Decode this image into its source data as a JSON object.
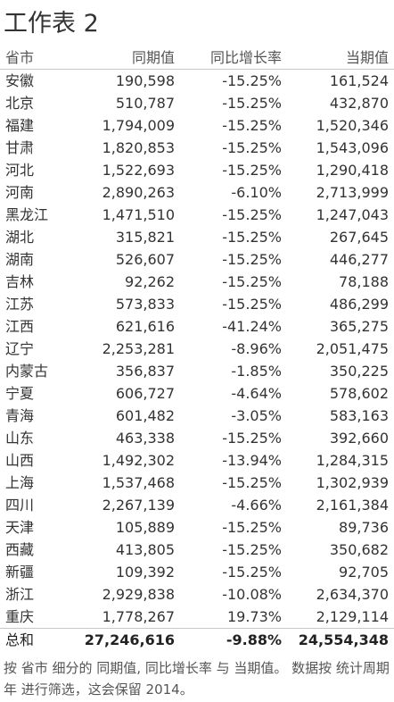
{
  "title": "工作表 2",
  "columns": [
    "省市",
    "同期值",
    "同比增长率",
    "当期值"
  ],
  "rows": [
    [
      "安徽",
      "190,598",
      "-15.25%",
      "161,524"
    ],
    [
      "北京",
      "510,787",
      "-15.25%",
      "432,870"
    ],
    [
      "福建",
      "1,794,009",
      "-15.25%",
      "1,520,346"
    ],
    [
      "甘肃",
      "1,820,853",
      "-15.25%",
      "1,543,096"
    ],
    [
      "河北",
      "1,522,693",
      "-15.25%",
      "1,290,418"
    ],
    [
      "河南",
      "2,890,263",
      "-6.10%",
      "2,713,999"
    ],
    [
      "黑龙江",
      "1,471,510",
      "-15.25%",
      "1,247,043"
    ],
    [
      "湖北",
      "315,821",
      "-15.25%",
      "267,645"
    ],
    [
      "湖南",
      "526,607",
      "-15.25%",
      "446,277"
    ],
    [
      "吉林",
      "92,262",
      "-15.25%",
      "78,188"
    ],
    [
      "江苏",
      "573,833",
      "-15.25%",
      "486,299"
    ],
    [
      "江西",
      "621,616",
      "-41.24%",
      "365,275"
    ],
    [
      "辽宁",
      "2,253,281",
      "-8.96%",
      "2,051,475"
    ],
    [
      "内蒙古",
      "356,837",
      "-1.85%",
      "350,225"
    ],
    [
      "宁夏",
      "606,727",
      "-4.64%",
      "578,602"
    ],
    [
      "青海",
      "601,482",
      "-3.05%",
      "583,163"
    ],
    [
      "山东",
      "463,338",
      "-15.25%",
      "392,660"
    ],
    [
      "山西",
      "1,492,302",
      "-13.94%",
      "1,284,315"
    ],
    [
      "上海",
      "1,537,468",
      "-15.25%",
      "1,302,939"
    ],
    [
      "四川",
      "2,267,139",
      "-4.66%",
      "2,161,384"
    ],
    [
      "天津",
      "105,889",
      "-15.25%",
      "89,736"
    ],
    [
      "西藏",
      "413,805",
      "-15.25%",
      "350,682"
    ],
    [
      "新疆",
      "109,392",
      "-15.25%",
      "92,705"
    ],
    [
      "浙江",
      "2,929,838",
      "-10.08%",
      "2,634,370"
    ],
    [
      "重庆",
      "1,778,267",
      "19.73%",
      "2,129,114"
    ]
  ],
  "total": [
    "总和",
    "27,246,616",
    "-9.88%",
    "24,554,348"
  ],
  "footer": "按 省市 细分的 同期值, 同比增长率 与 当期值。 数据按 统计周期 年 进行筛选，这会保留 2014。"
}
